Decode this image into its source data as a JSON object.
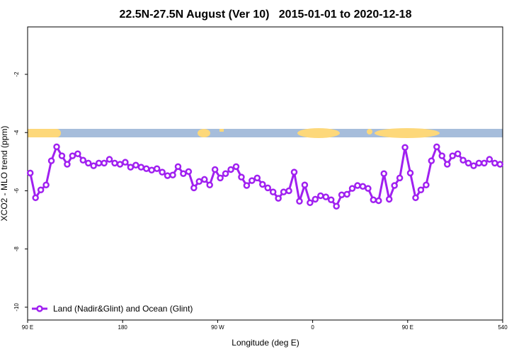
{
  "chart_data": {
    "type": "line",
    "title": "22.5N-27.5N August (Ver 10)   2015-01-01 to 2020-12-18",
    "x_label": "Longitude (deg E)",
    "y_label": "XCO2 - MLO trend (ppm)",
    "xlim": [
      90,
      540
    ],
    "ylim": [
      -10.44,
      -0.37
    ],
    "xticks": [
      {
        "value": 90,
        "label": "90 E"
      },
      180,
      {
        "value": 270,
        "label": "90 W"
      },
      {
        "value": 360,
        "label": "0"
      },
      {
        "value": 450,
        "label": "90 E"
      },
      540
    ],
    "yticks": [
      -2,
      -4,
      -6,
      -8,
      -10
    ],
    "legend": "bottom-left",
    "x": [
      92.5,
      97.5,
      102.5,
      107.5,
      112.5,
      117.5,
      122.5,
      127.5,
      132.5,
      137.5,
      142.5,
      147.5,
      152.5,
      157.5,
      162.5,
      167.5,
      172.5,
      177.5,
      182.5,
      187.5,
      192.5,
      197.5,
      202.5,
      207.5,
      212.5,
      217.5,
      222.5,
      227.5,
      232.5,
      237.5,
      242.5,
      247.5,
      252.5,
      257.5,
      262.5,
      267.5,
      272.5,
      277.5,
      282.5,
      287.5,
      292.5,
      297.5,
      302.5,
      307.5,
      312.5,
      317.5,
      322.5,
      327.5,
      332.5,
      337.5,
      342.5,
      347.5,
      352.5,
      357.5,
      362.5,
      367.5,
      372.5,
      377.5,
      382.5,
      387.5,
      392.5,
      397.5,
      402.5,
      407.5,
      412.5,
      417.5,
      422.5,
      427.5,
      432.5,
      437.5,
      442.5,
      447.5,
      452.5,
      457.5,
      462.5,
      467.5,
      472.5,
      477.5,
      482.5,
      487.5,
      492.5,
      497.5,
      502.5,
      507.5,
      512.5,
      517.5,
      522.5,
      527.5,
      532.5,
      537.5
    ],
    "series": [
      {
        "name": "Land (Nadir&Glint) and Ocean (Glint)",
        "color": "#a020f0",
        "values": [
          -5.39,
          -6.24,
          -5.97,
          -5.8,
          -4.97,
          -4.49,
          -4.8,
          -5.09,
          -4.8,
          -4.73,
          -4.95,
          -5.05,
          -5.14,
          -5.05,
          -5.05,
          -4.92,
          -5.05,
          -5.09,
          -5.02,
          -5.19,
          -5.12,
          -5.19,
          -5.24,
          -5.29,
          -5.24,
          -5.36,
          -5.48,
          -5.46,
          -5.17,
          -5.41,
          -5.34,
          -5.9,
          -5.68,
          -5.61,
          -5.8,
          -5.27,
          -5.56,
          -5.41,
          -5.27,
          -5.17,
          -5.53,
          -5.82,
          -5.65,
          -5.56,
          -5.78,
          -5.9,
          -6.04,
          -6.26,
          -6.04,
          -6.0,
          -5.36,
          -6.36,
          -5.8,
          -6.41,
          -6.29,
          -6.17,
          -6.21,
          -6.31,
          -6.53,
          -6.14,
          -6.12,
          -5.92,
          -5.82,
          -5.85,
          -5.92,
          -6.31,
          -6.34,
          -5.41,
          -6.29,
          -5.82,
          -5.56,
          -4.51,
          -5.39,
          -6.24,
          -5.97,
          -5.8,
          -4.97,
          -4.49,
          -4.8,
          -5.09,
          -4.8,
          -4.73,
          -4.95,
          -5.05,
          -5.14,
          -5.05,
          -5.05,
          -4.92,
          -5.05,
          -5.09
        ]
      }
    ]
  }
}
